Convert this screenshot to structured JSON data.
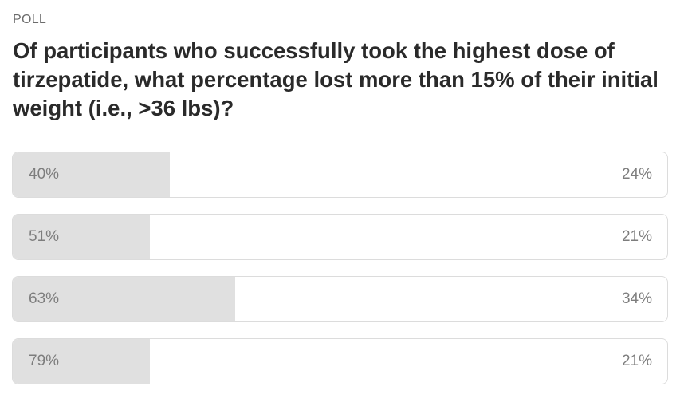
{
  "header": {
    "label": "POLL",
    "question": "Of participants who successfully took the highest dose of tirzepatide, what percentage lost more than 15% of their initial weight (i.e., >36 lbs)?"
  },
  "options": [
    {
      "text": "40%",
      "result": {
        "value": 24,
        "label": "24%"
      }
    },
    {
      "text": "51%",
      "result": {
        "value": 21,
        "label": "21%"
      }
    },
    {
      "text": "63%",
      "result": {
        "value": 34,
        "label": "34%"
      }
    },
    {
      "text": "79%",
      "result": {
        "value": 21,
        "label": "21%"
      }
    }
  ]
}
